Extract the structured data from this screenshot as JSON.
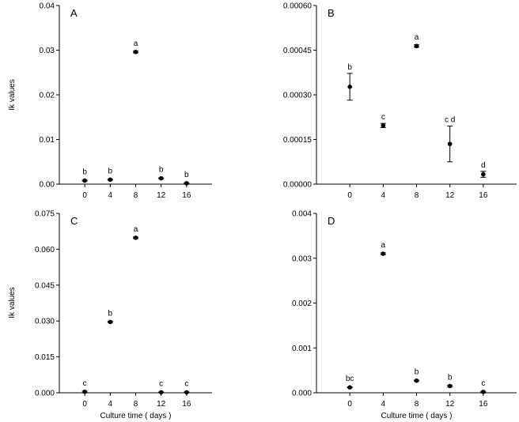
{
  "figure": {
    "background": "#ffffff",
    "marker_color": "#000000"
  },
  "chart_data": [
    {
      "panel": "A",
      "type": "scatter",
      "x": [
        0,
        4,
        8,
        12,
        16
      ],
      "y": [
        0.0008,
        0.001,
        0.0296,
        0.0013,
        0.0002
      ],
      "error": [
        0.0001,
        0.0001,
        0.0002,
        0.0001,
        0.0001
      ],
      "point_labels": [
        "b",
        "b",
        "a",
        "b",
        "b"
      ],
      "xlim": [
        -4,
        20
      ],
      "ylim": [
        0,
        0.04
      ],
      "xticks": [
        0,
        4,
        8,
        12,
        16
      ],
      "xtick_labels": [
        "0",
        "4",
        "8",
        "12",
        "16"
      ],
      "yticks": [
        0,
        0.01,
        0.02,
        0.03,
        0.04
      ],
      "ytick_labels": [
        "0.00",
        "0.01",
        "0.02",
        "0.03",
        "0.04"
      ],
      "xlabel": "",
      "ylabel": "Ik values",
      "grid": false
    },
    {
      "panel": "B",
      "type": "scatter",
      "x": [
        0,
        4,
        8,
        12,
        16
      ],
      "y": [
        0.000327,
        0.000197,
        0.000464,
        0.000135,
        3.3e-05
      ],
      "error": [
        4.5e-05,
        7e-06,
        4e-06,
        6e-05,
        1e-05
      ],
      "point_labels": [
        "b",
        "c",
        "a",
        "c d",
        "d"
      ],
      "xlim": [
        -4,
        20
      ],
      "ylim": [
        0,
        0.0006
      ],
      "xticks": [
        0,
        4,
        8,
        12,
        16
      ],
      "xtick_labels": [
        "0",
        "4",
        "8",
        "12",
        "16"
      ],
      "yticks": [
        0,
        0.00015,
        0.0003,
        0.00045,
        0.0006
      ],
      "ytick_labels": [
        "0.00000",
        "0.00015",
        "0.00030",
        "0.00045",
        "0.00060"
      ],
      "xlabel": "",
      "ylabel": "",
      "grid": false
    },
    {
      "panel": "C",
      "type": "scatter",
      "x": [
        0,
        4,
        8,
        12,
        16
      ],
      "y": [
        0.0004,
        0.0296,
        0.0648,
        0.0002,
        0.0002
      ],
      "error": [
        0.0003,
        0.0002,
        0.0003,
        0.0001,
        0.0001
      ],
      "point_labels": [
        "c",
        "b",
        "a",
        "c",
        "c"
      ],
      "xlim": [
        -4,
        20
      ],
      "ylim": [
        0,
        0.075
      ],
      "xticks": [
        0,
        4,
        8,
        12,
        16
      ],
      "xtick_labels": [
        "0",
        "4",
        "8",
        "12",
        "16"
      ],
      "yticks": [
        0,
        0.015,
        0.03,
        0.045,
        0.06,
        0.075
      ],
      "ytick_labels": [
        "0.000",
        "0.015",
        "0.030",
        "0.045",
        "0.060",
        "0.075"
      ],
      "xlabel": "Culture time ( days )",
      "ylabel": "Ik values",
      "grid": false
    },
    {
      "panel": "D",
      "type": "scatter",
      "x": [
        0,
        4,
        8,
        12,
        16
      ],
      "y": [
        0.00012,
        0.0031,
        0.00027,
        0.00015,
        2e-05
      ],
      "error": [
        1e-05,
        2e-05,
        1e-05,
        2e-05,
        1e-05
      ],
      "point_labels": [
        "bc",
        "a",
        "b",
        "b",
        "c"
      ],
      "xlim": [
        -4,
        20
      ],
      "ylim": [
        0,
        0.004
      ],
      "xticks": [
        0,
        4,
        8,
        12,
        16
      ],
      "xtick_labels": [
        "0",
        "4",
        "8",
        "12",
        "16"
      ],
      "yticks": [
        0,
        0.001,
        0.002,
        0.003,
        0.004
      ],
      "ytick_labels": [
        "0.000",
        "0.001",
        "0.002",
        "0.003",
        "0.004"
      ],
      "xlabel": "Culture time ( days )",
      "ylabel": "",
      "grid": false
    }
  ]
}
